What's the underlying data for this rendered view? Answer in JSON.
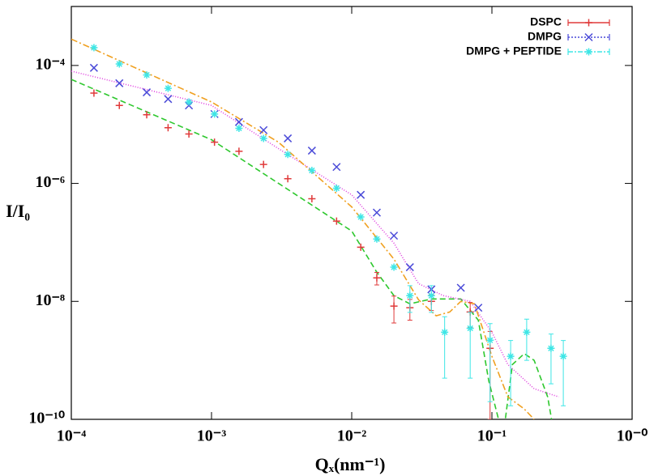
{
  "chart_data": {
    "type": "scatter",
    "x_label": "Qₓ(nm⁻¹)",
    "y_label": "I/I₀",
    "x_log": true,
    "y_log": true,
    "xlim": [
      0.0001,
      1
    ],
    "ylim": [
      1e-10,
      0.001
    ],
    "xticks": [
      {
        "value": 0.0001,
        "label": "10⁻⁴"
      },
      {
        "value": 0.001,
        "label": "10⁻³"
      },
      {
        "value": 0.01,
        "label": "10⁻²"
      },
      {
        "value": 0.1,
        "label": "10⁻¹"
      },
      {
        "value": 1,
        "label": "10⁻⁰"
      }
    ],
    "yticks": [
      {
        "value": 1e-10,
        "label": "10⁻¹⁰"
      },
      {
        "value": 1e-08,
        "label": "10⁻⁸"
      },
      {
        "value": 1e-06,
        "label": "10⁻⁶"
      },
      {
        "value": 0.0001,
        "label": "10⁻⁴"
      }
    ],
    "legend": "top-right",
    "series": [
      {
        "name": "DSPC",
        "color": "#e03a3a",
        "marker": "plus",
        "legend_dash": "",
        "x": [
          0.000145,
          0.00022,
          0.000345,
          0.00049,
          0.00069,
          0.00105,
          0.00157,
          0.00235,
          0.0035,
          0.0052,
          0.0078,
          0.0116,
          0.0151,
          0.02,
          0.026,
          0.037,
          0.07,
          0.097
        ],
        "values": [
          3.4e-05,
          2.1e-05,
          1.46e-05,
          8.8e-06,
          6.9e-06,
          5e-06,
          3.5e-06,
          2.1e-06,
          1.2e-06,
          5.5e-07,
          2.3e-07,
          8.3e-08,
          2.5e-08,
          8.3e-09,
          7.8e-09,
          1e-08,
          6.6e-09,
          1.6e-09
        ],
        "errors": [
          null,
          null,
          null,
          null,
          null,
          null,
          null,
          null,
          null,
          null,
          null,
          null,
          6e-09,
          4e-09,
          3e-09,
          3e-09,
          3e-09,
          1.5e-09
        ]
      },
      {
        "name": "DMPG",
        "color": "#4a4ad8",
        "marker": "cross",
        "legend_dash": "2,2",
        "x": [
          0.000145,
          0.00022,
          0.000345,
          0.00049,
          0.00069,
          0.00105,
          0.00157,
          0.00235,
          0.0035,
          0.0052,
          0.0078,
          0.0116,
          0.0151,
          0.02,
          0.026,
          0.037,
          0.06,
          0.08
        ],
        "values": [
          9.1e-05,
          5e-05,
          3.5e-05,
          2.7e-05,
          2.1e-05,
          1.5e-05,
          1.1e-05,
          8e-06,
          5.8e-06,
          3.6e-06,
          1.9e-06,
          6.4e-07,
          3.2e-07,
          1.3e-07,
          3.8e-08,
          1.6e-08,
          1.7e-08,
          7.8e-09
        ],
        "errors": [
          null,
          null,
          null,
          null,
          null,
          null,
          null,
          null,
          null,
          null,
          null,
          null,
          null,
          null,
          null,
          null,
          null,
          null
        ]
      },
      {
        "name": "DMPG + PEPTIDE",
        "color": "#3ee6e6",
        "marker": "star",
        "legend_dash": "6,2,2,2",
        "x": [
          0.000145,
          0.00022,
          0.000345,
          0.00049,
          0.00069,
          0.00105,
          0.00157,
          0.00235,
          0.0035,
          0.0052,
          0.0078,
          0.0116,
          0.0151,
          0.02,
          0.026,
          0.037,
          0.046,
          0.07,
          0.097,
          0.136,
          0.177,
          0.264,
          0.323
        ],
        "values": [
          0.0002,
          0.000106,
          6.9e-05,
          4.1e-05,
          2.4e-05,
          1.5e-05,
          8.6e-06,
          5.8e-06,
          3.1e-06,
          1.66e-06,
          8.3e-07,
          2.7e-07,
          1.14e-07,
          3.8e-08,
          1.25e-08,
          1.25e-08,
          3e-09,
          3.5e-09,
          2.2e-09,
          1.17e-09,
          3e-09,
          1.6e-09,
          1.17e-09
        ],
        "errors": [
          null,
          null,
          null,
          null,
          null,
          null,
          null,
          null,
          null,
          null,
          null,
          null,
          null,
          null,
          6e-09,
          6e-09,
          2.5e-09,
          3e-09,
          2e-09,
          1e-09,
          2e-09,
          1.2e-09,
          1e-09
        ]
      }
    ],
    "fits": [
      {
        "color": "#2ec82e",
        "dash": "7,4",
        "x": [
          0.0001,
          0.001,
          0.01,
          0.015,
          0.02,
          0.026,
          0.037,
          0.06,
          0.08,
          0.095,
          0.12,
          0.14,
          0.17,
          0.2,
          0.25,
          0.28
        ],
        "values": [
          5.8e-05,
          5.5e-06,
          1.56e-07,
          3.2e-08,
          1.25e-08,
          9.1e-09,
          1.1e-08,
          1.1e-08,
          4.8e-09,
          4.5e-10,
          5e-11,
          8.5e-10,
          1.3e-09,
          1e-09,
          2.4e-10,
          5e-11
        ]
      },
      {
        "color": "#e040e0",
        "dash": "1,2",
        "x": [
          0.0001,
          0.001,
          0.003,
          0.01,
          0.02,
          0.03,
          0.045,
          0.07,
          0.1,
          0.13,
          0.2,
          0.3
        ],
        "values": [
          8e-05,
          2.1e-05,
          3.9e-06,
          6.4e-07,
          9.7e-08,
          2e-08,
          1.25e-08,
          1e-08,
          3e-09,
          8.5e-10,
          3.3e-10,
          2.4e-10
        ]
      },
      {
        "color": "#f0a020",
        "dash": "8,3,2,3",
        "x": [
          0.0001,
          0.001,
          0.003,
          0.01,
          0.02,
          0.03,
          0.04,
          0.05,
          0.06,
          0.075,
          0.1,
          0.13,
          0.17,
          0.2
        ],
        "values": [
          0.00028,
          2.4e-05,
          5e-06,
          4e-07,
          5.2e-08,
          1.06e-08,
          5.7e-09,
          6.6e-09,
          1e-08,
          9.1e-09,
          1.17e-09,
          2.4e-10,
          1.5e-10,
          1e-10
        ]
      }
    ]
  }
}
